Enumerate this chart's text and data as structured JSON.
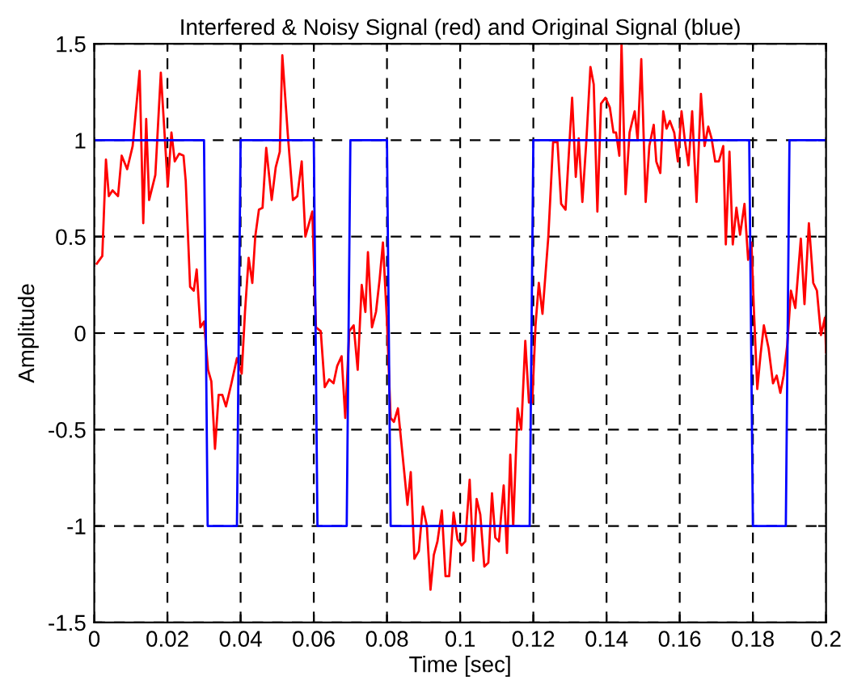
{
  "chart_data": {
    "type": "line",
    "title": "Interfered & Noisy Signal (red) and Original Signal (blue)",
    "xlabel": "Time [sec]",
    "ylabel": "Amplitude",
    "xlim": [
      0,
      0.2
    ],
    "ylim": [
      -1.5,
      1.5
    ],
    "xticks": [
      0,
      0.02,
      0.04,
      0.06,
      0.08,
      0.1,
      0.12,
      0.14,
      0.16,
      0.18,
      0.2
    ],
    "yticks": [
      -1.5,
      -1,
      -0.5,
      0,
      0.5,
      1,
      1.5
    ],
    "grid": true,
    "line_style": "solid",
    "marker": "none",
    "legend": false,
    "series": [
      {
        "color": "#ff0000",
        "x": [
          0.0007,
          0.0022,
          0.0032,
          0.004,
          0.005,
          0.0065,
          0.0075,
          0.009,
          0.0105,
          0.0124,
          0.0134,
          0.0142,
          0.015,
          0.0167,
          0.0182,
          0.0201,
          0.0211,
          0.022,
          0.0232,
          0.0244,
          0.025,
          0.0262,
          0.0272,
          0.028,
          0.029,
          0.03,
          0.0311,
          0.032,
          0.033,
          0.034,
          0.035,
          0.036,
          0.0375,
          0.039,
          0.0403,
          0.0412,
          0.0422,
          0.0432,
          0.044,
          0.045,
          0.046,
          0.047,
          0.0485,
          0.0496,
          0.0507,
          0.0514,
          0.0529,
          0.0543,
          0.0555,
          0.0567,
          0.0577,
          0.0596,
          0.0606,
          0.0619,
          0.063,
          0.0642,
          0.0654,
          0.0664,
          0.0676,
          0.0686,
          0.0697,
          0.0709,
          0.072,
          0.0731,
          0.0741,
          0.0748,
          0.0759,
          0.077,
          0.078,
          0.0789,
          0.08,
          0.081,
          0.0819,
          0.083,
          0.0843,
          0.0856,
          0.0865,
          0.0875,
          0.0887,
          0.0898,
          0.0909,
          0.0919,
          0.0928,
          0.0938,
          0.095,
          0.096,
          0.097,
          0.0982,
          0.0993,
          0.1004,
          0.1014,
          0.1026,
          0.1036,
          0.1045,
          0.1055,
          0.1066,
          0.1077,
          0.1087,
          0.1096,
          0.1106,
          0.1119,
          0.1128,
          0.1137,
          0.1145,
          0.1157,
          0.1167,
          0.1178,
          0.1188,
          0.1197,
          0.1206,
          0.1215,
          0.1225,
          0.1241,
          0.1254,
          0.1266,
          0.1276,
          0.1288,
          0.1306,
          0.1316,
          0.1324,
          0.1334,
          0.1345,
          0.1356,
          0.1365,
          0.1375,
          0.1385,
          0.1397,
          0.1409,
          0.1419,
          0.1426,
          0.1435,
          0.1441,
          0.1452,
          0.1463,
          0.1477,
          0.1485,
          0.1495,
          0.1507,
          0.1517,
          0.1529,
          0.1536,
          0.1547,
          0.1555,
          0.1564,
          0.1573,
          0.1585,
          0.1595,
          0.1605,
          0.1614,
          0.1624,
          0.1634,
          0.1646,
          0.1658,
          0.1668,
          0.1678,
          0.1687,
          0.1697,
          0.1707,
          0.1719,
          0.1726,
          0.1736,
          0.1745,
          0.1755,
          0.1765,
          0.1777,
          0.1787,
          0.1796,
          0.1803,
          0.1812,
          0.1821,
          0.183,
          0.1843,
          0.1855,
          0.1865,
          0.1875,
          0.1884,
          0.1894,
          0.1904,
          0.1916,
          0.1931,
          0.1941,
          0.1953,
          0.1965,
          0.1975,
          0.1986,
          0.1997,
          0.2
        ],
        "values": [
          0.36,
          0.4,
          0.9,
          0.71,
          0.74,
          0.71,
          0.92,
          0.85,
          0.97,
          1.36,
          0.57,
          1.11,
          0.69,
          0.82,
          1.35,
          0.76,
          1.04,
          0.89,
          0.93,
          0.92,
          0.79,
          0.24,
          0.22,
          0.33,
          0.03,
          0.06,
          -0.19,
          -0.25,
          -0.6,
          -0.32,
          -0.32,
          -0.38,
          -0.26,
          -0.13,
          -0.21,
          0.11,
          0.39,
          0.26,
          0.5,
          0.64,
          0.65,
          0.96,
          0.69,
          0.86,
          0.94,
          1.44,
          1.03,
          0.69,
          0.71,
          0.89,
          0.5,
          0.63,
          0.03,
          0.01,
          -0.28,
          -0.24,
          -0.26,
          -0.17,
          -0.12,
          -0.44,
          0.01,
          0.04,
          -0.19,
          0.25,
          0.11,
          0.42,
          0.03,
          0.11,
          0.28,
          0.47,
          0.06,
          -0.44,
          -0.46,
          -0.39,
          -0.64,
          -0.89,
          -0.72,
          -1.17,
          -1.13,
          -0.9,
          -1,
          -1.33,
          -1.15,
          -1.08,
          -0.92,
          -1.26,
          -1.26,
          -0.93,
          -1.07,
          -1.1,
          -1.08,
          -0.76,
          -1.18,
          -0.86,
          -0.94,
          -1.21,
          -1.19,
          -0.83,
          -1.06,
          -1.08,
          -0.79,
          -1.14,
          -0.63,
          -1,
          -0.39,
          -0.5,
          -0.04,
          -0.36,
          -0.36,
          0.04,
          0.26,
          0.1,
          0.5,
          0.99,
          0.99,
          0.67,
          0.64,
          1.22,
          0.81,
          1.01,
          0.68,
          1,
          1.38,
          1.29,
          0.63,
          1.19,
          1.22,
          1.17,
          1.04,
          1.04,
          0.92,
          1.5,
          0.72,
          1.04,
          1.15,
          1,
          1.42,
          0.68,
          0.97,
          1.08,
          0.89,
          0.83,
          1.15,
          1.06,
          1.1,
          1.04,
          0.89,
          1.15,
          1,
          0.87,
          1.15,
          0.68,
          1.24,
          0.97,
          1.07,
          1.01,
          0.89,
          0.89,
          0.97,
          0.46,
          0.94,
          0.46,
          0.65,
          0.51,
          0.67,
          0.38,
          0.47,
          0.11,
          -0.29,
          -0.11,
          0.04,
          -0.08,
          -0.26,
          -0.22,
          -0.31,
          -0.22,
          -0.06,
          0.22,
          0.13,
          0.49,
          0.15,
          0.57,
          0.26,
          0.22,
          -0.01,
          0.08,
          -0.1
        ]
      },
      {
        "color": "#0000ff",
        "x": [
          0,
          0.03,
          0.031,
          0.039,
          0.04,
          0.06,
          0.061,
          0.069,
          0.07,
          0.08,
          0.081,
          0.119,
          0.12,
          0.179,
          0.18,
          0.189,
          0.19,
          0.2
        ],
        "values": [
          1,
          1,
          -1,
          -1,
          1,
          1,
          -1,
          -1,
          1,
          1,
          -1,
          -1,
          1,
          1,
          -1,
          -1,
          1,
          1
        ]
      }
    ]
  }
}
